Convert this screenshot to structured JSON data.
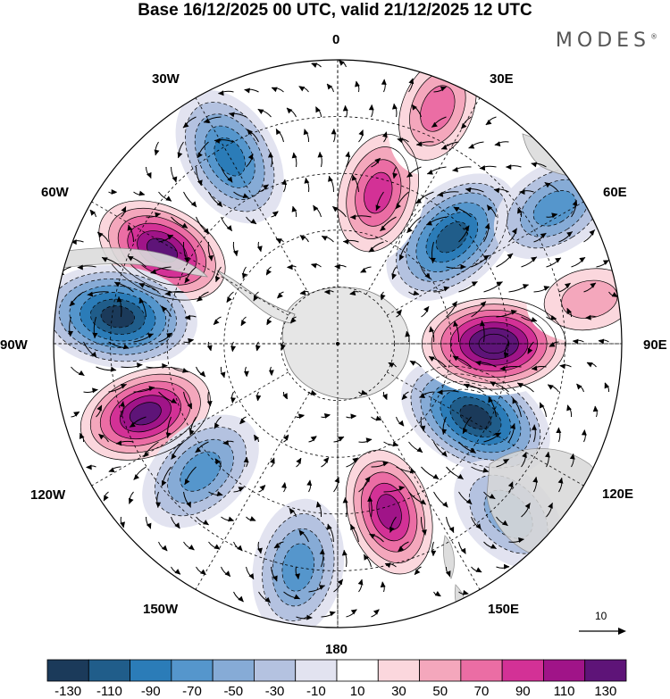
{
  "title": "Base 16/12/2025 00 UTC, valid 21/12/2025 12 UTC",
  "logo": "MODES",
  "logo_mark": "®",
  "longitude_labels": {
    "n0": "0",
    "e30": "30E",
    "e60": "60E",
    "e90": "90E",
    "e120": "120E",
    "e150": "150E",
    "s180": "180",
    "w150": "150W",
    "w120": "120W",
    "w90": "90W",
    "w60": "60W",
    "w30": "30W"
  },
  "reference_vector": {
    "label": "10"
  },
  "colorbar": {
    "ticks": [
      "-130",
      "-110",
      "-90",
      "-70",
      "-50",
      "-30",
      "-10",
      "10",
      "30",
      "50",
      "70",
      "90",
      "110",
      "130"
    ],
    "colors": [
      "#1b3a5a",
      "#205d8a",
      "#2b7cb8",
      "#5596cc",
      "#86abd6",
      "#b4c2e0",
      "#e2e3f0",
      "#ffffff",
      "#fbd7dd",
      "#f4a7bc",
      "#eb6da4",
      "#d33196",
      "#a01488",
      "#5e1478"
    ]
  },
  "anomalies": [
    {
      "name": "negative-anomaly-30w",
      "lon": -30,
      "r": 0.76,
      "value": -85
    },
    {
      "name": "positive-anomaly-60w",
      "lon": -62,
      "r": 0.7,
      "value": 115
    },
    {
      "name": "negative-anomaly-90w",
      "lon": -83,
      "r": 0.78,
      "value": -125
    },
    {
      "name": "positive-anomaly-110w",
      "lon": -110,
      "r": 0.72,
      "value": 112
    },
    {
      "name": "negative-anomaly-130w",
      "lon": -133,
      "r": 0.66,
      "value": -65
    },
    {
      "name": "negative-anomaly-160w",
      "lon": -170,
      "r": 0.8,
      "value": -70
    },
    {
      "name": "positive-anomaly-165e",
      "lon": 163,
      "r": 0.62,
      "value": 100
    },
    {
      "name": "negative-anomaly-120e",
      "lon": 118,
      "r": 0.55,
      "value": -125
    },
    {
      "name": "positive-anomaly-90e",
      "lon": 90,
      "r": 0.55,
      "value": 132
    },
    {
      "name": "negative-anomaly-45e",
      "lon": 47,
      "r": 0.55,
      "value": -110
    },
    {
      "name": "positive-anomaly-20e",
      "lon": 15,
      "r": 0.55,
      "value": 90
    },
    {
      "name": "positive-anomaly-25e",
      "lon": 23,
      "r": 0.9,
      "value": 70
    },
    {
      "name": "negative-anomaly-60e",
      "lon": 58,
      "r": 0.9,
      "value": -55
    },
    {
      "name": "positive-anomaly-80e",
      "lon": 80,
      "r": 0.9,
      "value": 40
    },
    {
      "name": "negative-anomaly-135e",
      "lon": 135,
      "r": 0.85,
      "value": -45
    }
  ]
}
